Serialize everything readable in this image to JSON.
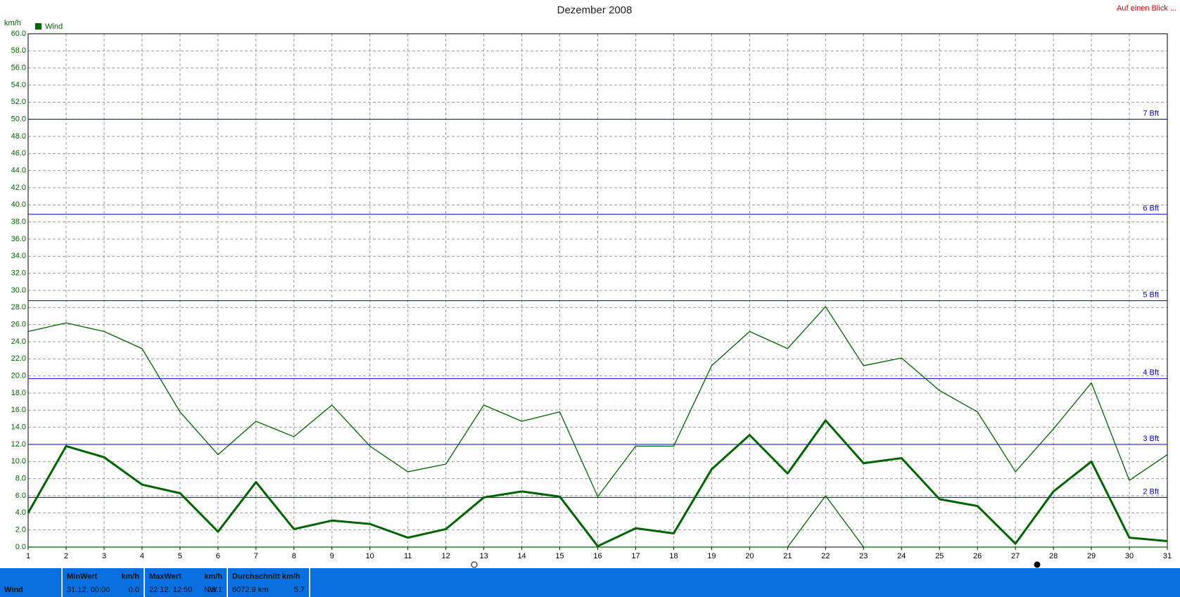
{
  "chart_data": {
    "type": "line",
    "title": "Dezember 2008",
    "link": "Auf einen Blick ...",
    "y_label": "km/h",
    "legend": {
      "label": "Wind",
      "color": "#006400"
    },
    "x": [
      1,
      2,
      3,
      4,
      5,
      6,
      7,
      8,
      9,
      10,
      11,
      12,
      13,
      14,
      15,
      16,
      17,
      18,
      19,
      20,
      21,
      22,
      23,
      24,
      25,
      26,
      27,
      28,
      29,
      30,
      31
    ],
    "xlim": [
      1,
      31
    ],
    "xticks": [
      1,
      2,
      3,
      4,
      5,
      6,
      7,
      8,
      9,
      10,
      11,
      12,
      13,
      14,
      15,
      16,
      17,
      18,
      19,
      20,
      21,
      22,
      23,
      24,
      25,
      26,
      27,
      28,
      29,
      30,
      31
    ],
    "ylim": [
      0,
      60
    ],
    "yticks": [
      {
        "value": 0,
        "label": "0.0"
      },
      {
        "value": 2,
        "label": "2.0"
      },
      {
        "value": 4,
        "label": "4.0"
      },
      {
        "value": 6,
        "label": "6.0"
      },
      {
        "value": 8,
        "label": "8.0"
      },
      {
        "value": 10,
        "label": "10.0"
      },
      {
        "value": 12,
        "label": "12.0"
      },
      {
        "value": 14,
        "label": "14.0"
      },
      {
        "value": 16,
        "label": "16.0"
      },
      {
        "value": 18,
        "label": "18.0"
      },
      {
        "value": 20,
        "label": "20.0"
      },
      {
        "value": 22,
        "label": "22.0"
      },
      {
        "value": 24,
        "label": "24.0"
      },
      {
        "value": 26,
        "label": "26.0"
      },
      {
        "value": 28,
        "label": "28.0"
      },
      {
        "value": 30,
        "label": "30.0"
      },
      {
        "value": 32,
        "label": "32.0"
      },
      {
        "value": 34,
        "label": "34.0"
      },
      {
        "value": 36,
        "label": "36.0"
      },
      {
        "value": 38,
        "label": "38.0"
      },
      {
        "value": 40,
        "label": "40.0"
      },
      {
        "value": 42,
        "label": "42.0"
      },
      {
        "value": 44,
        "label": "44.0"
      },
      {
        "value": 46,
        "label": "46.0"
      },
      {
        "value": 48,
        "label": "48.0"
      },
      {
        "value": 50,
        "label": "50.0"
      },
      {
        "value": 52,
        "label": "52.0"
      },
      {
        "value": 54,
        "label": "54.0"
      },
      {
        "value": 56,
        "label": "56.0"
      },
      {
        "value": 58,
        "label": "58.0"
      },
      {
        "value": 60,
        "label": "60.0"
      }
    ],
    "grid": true,
    "series": [
      {
        "color": "#006400",
        "width": 1.3,
        "values": [
          25.2,
          26.2,
          25.2,
          23.2,
          15.8,
          10.8,
          14.7,
          12.9,
          16.6,
          11.8,
          8.8,
          9.7,
          16.6,
          14.7,
          15.8,
          5.9,
          11.8,
          11.8,
          21.2,
          25.2,
          23.2,
          28.1,
          21.2,
          22.1,
          18.3,
          15.8,
          8.8,
          13.8,
          19.2,
          7.8,
          10.8
        ]
      },
      {
        "color": "#006400",
        "width": 3,
        "values": [
          4.0,
          11.8,
          10.5,
          7.3,
          6.3,
          1.8,
          7.6,
          2.1,
          3.1,
          2.7,
          1.1,
          2.1,
          5.8,
          6.5,
          5.9,
          0.1,
          2.2,
          1.6,
          9.1,
          13.1,
          8.6,
          14.8,
          9.8,
          10.4,
          5.6,
          4.8,
          0.4,
          6.5,
          10.0,
          1.1,
          0.7
        ]
      },
      {
        "color": "#006400",
        "width": 1.3,
        "values": [
          0,
          0,
          0,
          0,
          0,
          0,
          0,
          0,
          0,
          0,
          0,
          0,
          0,
          0,
          0,
          0,
          0,
          0,
          0,
          0,
          0,
          6.0,
          0,
          0,
          0,
          0,
          0,
          0,
          0,
          0,
          0
        ]
      }
    ],
    "reference_lines": [
      {
        "value": 5.8,
        "label": "2 Bft"
      },
      {
        "value": 12.0,
        "label": "3 Bft"
      },
      {
        "value": 19.7,
        "label": "4 Bft"
      },
      {
        "value": 28.8,
        "label": "5 Bft"
      },
      {
        "value": 38.9,
        "label": "6 Bft"
      },
      {
        "value": 50.0,
        "label": "7 Bft"
      }
    ],
    "reference_color": "#0000cc"
  },
  "footer": {
    "row_label": "Wind",
    "min": {
      "header": "MinWert",
      "unit": "km/h",
      "date": "31.12.  00:00",
      "value": "0.0"
    },
    "max": {
      "header": "MaxWert",
      "unit": "km/h",
      "date": "22.12.  12:50",
      "direction": "NW",
      "value": "28.1"
    },
    "avg": {
      "header": "Durchschnitt km/h",
      "distance": "6072.9 km",
      "value": "5.7"
    }
  }
}
